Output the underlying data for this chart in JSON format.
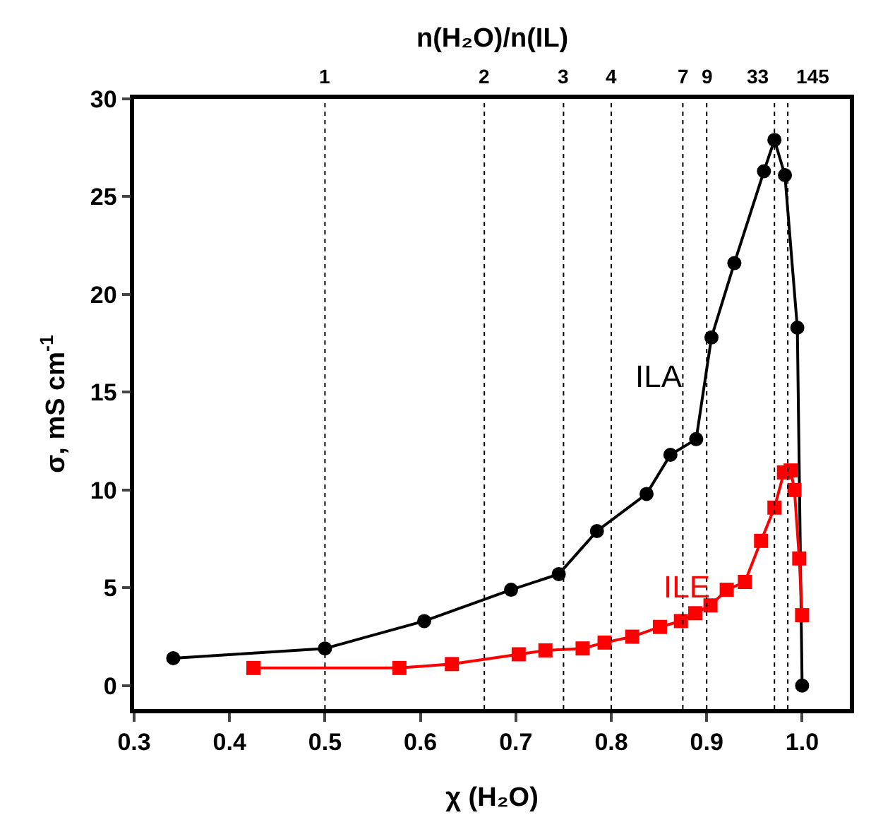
{
  "chart_data": {
    "type": "line",
    "xlabel": "χ (H₂O)",
    "ylabel": "σ, mS cm$^{-1}$",
    "x2label": "n(H₂O)/n(IL)",
    "xlim": [
      0.3,
      1.05
    ],
    "xticks": [
      {
        "value": 0.3,
        "label": "0.3"
      },
      {
        "value": 0.4,
        "label": "0.4"
      },
      {
        "value": 0.5,
        "label": "0.5"
      },
      {
        "value": 0.6,
        "label": "0.6"
      },
      {
        "value": 0.7,
        "label": "0.7"
      },
      {
        "value": 0.8,
        "label": "0.8"
      },
      {
        "value": 0.9,
        "label": "0.9"
      },
      {
        "value": 1.0,
        "label": "1.0"
      }
    ],
    "ylim": [
      -1.2,
      30
    ],
    "yticks": [
      0,
      5,
      10,
      15,
      20,
      25,
      30
    ],
    "ref_lines": [
      {
        "axis": "x",
        "value": 0.5,
        "line_style": "dotted"
      },
      {
        "axis": "x",
        "value": 0.667,
        "line_style": "dotted"
      },
      {
        "axis": "x",
        "value": 0.75,
        "line_style": "dotted"
      },
      {
        "axis": "x",
        "value": 0.8,
        "line_style": "dotted"
      },
      {
        "axis": "x",
        "value": 0.875,
        "line_style": "dotted"
      },
      {
        "axis": "x",
        "value": 0.9,
        "line_style": "dotted"
      },
      {
        "axis": "x",
        "value": 0.971,
        "line_style": "dotted"
      },
      {
        "axis": "x",
        "value": 0.985,
        "line_style": "dotted"
      }
    ],
    "annotations": [
      {
        "text": "1",
        "x": 0.5,
        "y": 30
      },
      {
        "text": "2",
        "x": 0.667,
        "y": 30
      },
      {
        "text": "3",
        "x": 0.75,
        "y": 30
      },
      {
        "text": "4",
        "x": 0.8,
        "y": 30
      },
      {
        "text": "7",
        "x": 0.875,
        "y": 30
      },
      {
        "text": "9",
        "x": 0.9,
        "y": 30
      },
      {
        "text": "33",
        "x": 0.971,
        "y": 30
      },
      {
        "text": "145",
        "x": 0.985,
        "y": 30
      }
    ],
    "grid": false,
    "legend": false,
    "series": [
      {
        "name": "ILA",
        "color": "#000000",
        "marker": "circle",
        "line_style": "solid",
        "x": [
          0.341,
          0.5,
          0.604,
          0.695,
          0.745,
          0.785,
          0.837,
          0.862,
          0.889,
          0.905,
          0.929,
          0.96,
          0.971,
          0.982,
          0.995,
          1.0
        ],
        "values": [
          1.4,
          1.9,
          3.3,
          4.9,
          5.7,
          7.9,
          9.8,
          11.8,
          12.6,
          17.8,
          21.6,
          26.3,
          27.9,
          26.1,
          18.3,
          0
        ]
      },
      {
        "name": "ILE",
        "color": "#ff0000",
        "marker": "square",
        "line_style": "solid",
        "x": [
          0.425,
          0.578,
          0.633,
          0.703,
          0.731,
          0.77,
          0.793,
          0.822,
          0.851,
          0.873,
          0.888,
          0.904,
          0.921,
          0.94,
          0.957,
          0.971,
          0.981,
          0.988,
          0.992,
          0.997,
          1.0
        ],
        "values": [
          0.9,
          0.9,
          1.1,
          1.6,
          1.8,
          1.9,
          2.2,
          2.5,
          3.0,
          3.3,
          3.7,
          4.1,
          4.9,
          5.3,
          7.4,
          9.1,
          10.9,
          11.0,
          10.0,
          6.5,
          3.6
        ]
      }
    ]
  }
}
